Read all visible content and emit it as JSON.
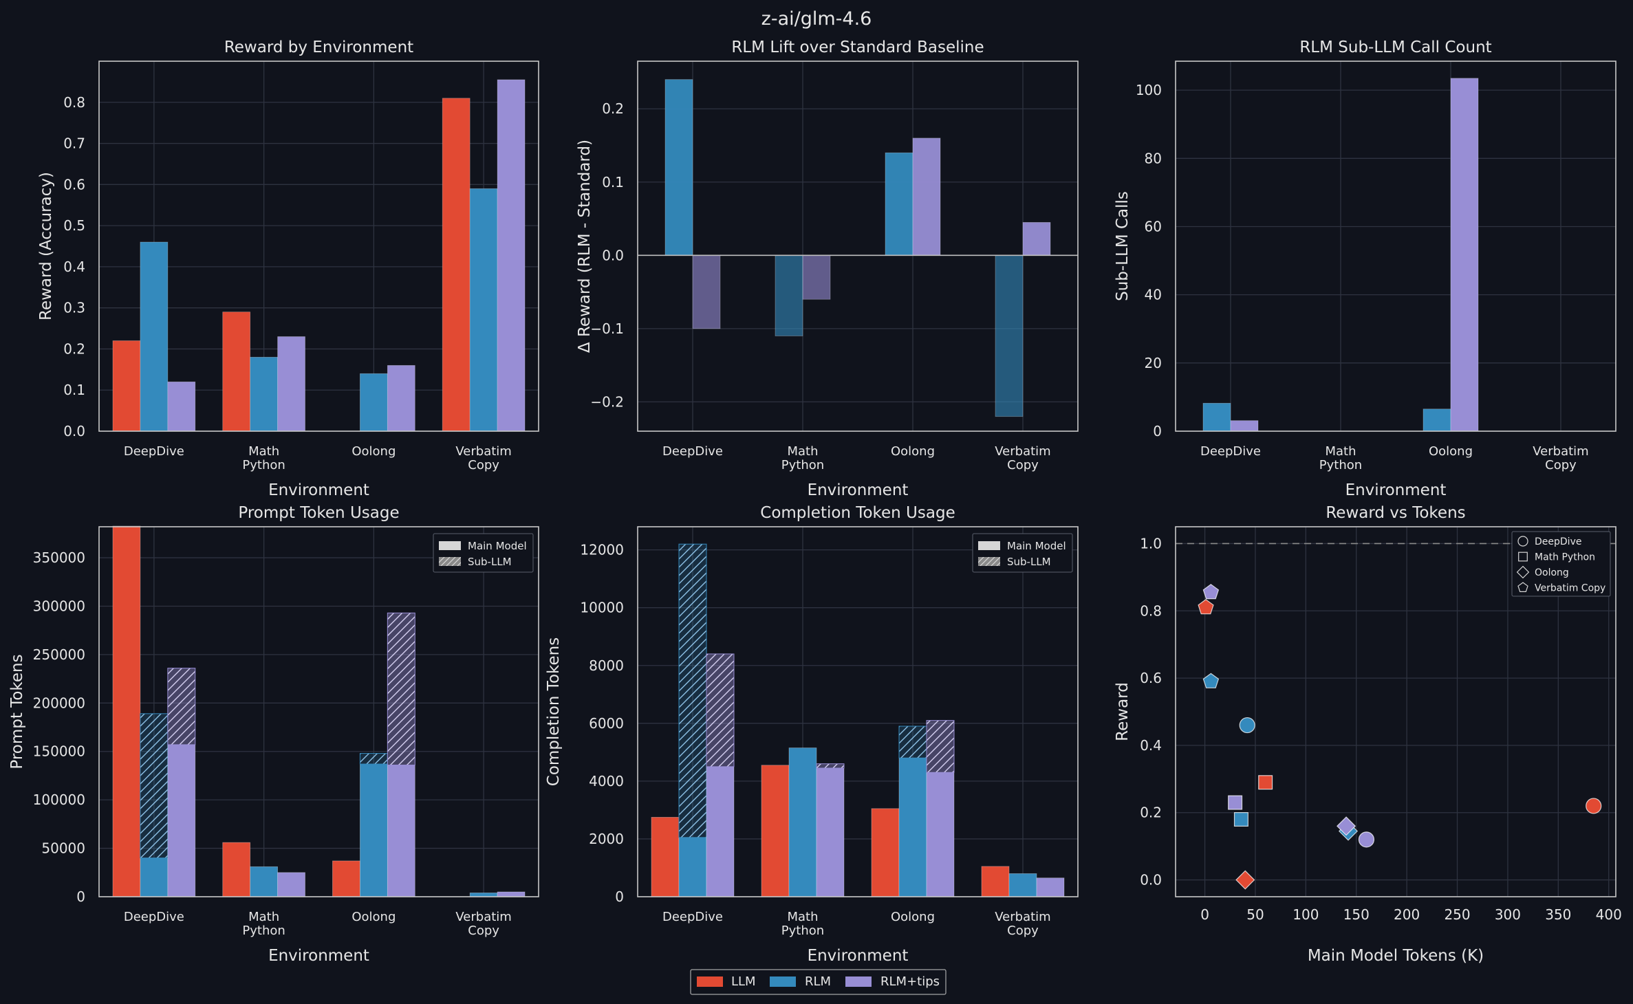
{
  "suptitle": "z-ai/glm-4.6",
  "colors": {
    "background": "#10131c",
    "grid": "#2e3340",
    "spine": "#c8c8c8",
    "text": "#e6e6e6",
    "llm": "#e24a33",
    "rlm": "#348abd",
    "rlm_tips": "#988ed5",
    "main_model_swatch": "#d6d6d6",
    "dashed_line": "#8a8a8a"
  },
  "legend": {
    "items": [
      "LLM",
      "RLM",
      "RLM+tips"
    ]
  },
  "chart_data": [
    {
      "id": "reward",
      "type": "bar",
      "title": "Reward by Environment",
      "xlabel": "Environment",
      "ylabel": "Reward (Accuracy)",
      "categories": [
        "DeepDive",
        "Math\nPython",
        "Oolong",
        "Verbatim\nCopy"
      ],
      "ylim": [
        0,
        0.9
      ],
      "yticks": [
        0,
        0.1,
        0.2,
        0.3,
        0.4,
        0.5,
        0.6,
        0.7,
        0.8
      ],
      "ytick_labels": [
        "0.0",
        "0.1",
        "0.2",
        "0.3",
        "0.4",
        "0.5",
        "0.6",
        "0.7",
        "0.8"
      ],
      "series": [
        {
          "name": "LLM",
          "values": [
            0.22,
            0.29,
            0.0,
            0.81
          ]
        },
        {
          "name": "RLM",
          "values": [
            0.46,
            0.18,
            0.14,
            0.59
          ]
        },
        {
          "name": "RLM+tips",
          "values": [
            0.12,
            0.23,
            0.16,
            0.855
          ]
        }
      ]
    },
    {
      "id": "lift",
      "type": "bar",
      "title": "RLM Lift over Standard Baseline",
      "xlabel": "Environment",
      "ylabel": "Δ Reward (RLM - Standard)",
      "categories": [
        "DeepDive",
        "Math\nPython",
        "Oolong",
        "Verbatim\nCopy"
      ],
      "ylim": [
        -0.24,
        0.265
      ],
      "yticks": [
        -0.2,
        -0.1,
        0,
        0.1,
        0.2
      ],
      "ytick_labels": [
        "−0.2",
        "−0.1",
        "0.0",
        "0.1",
        "0.2"
      ],
      "zero_line": true,
      "series": [
        {
          "name": "RLM",
          "values": [
            0.24,
            -0.11,
            0.14,
            -0.22
          ]
        },
        {
          "name": "RLM+tips",
          "values": [
            -0.1,
            -0.06,
            0.16,
            0.045
          ]
        }
      ]
    },
    {
      "id": "subcalls",
      "type": "bar",
      "title": "RLM Sub-LLM Call Count",
      "xlabel": "Environment",
      "ylabel": "Sub-LLM Calls",
      "categories": [
        "DeepDive",
        "Math\nPython",
        "Oolong",
        "Verbatim\nCopy"
      ],
      "ylim": [
        0,
        108.5
      ],
      "yticks": [
        0,
        20,
        40,
        60,
        80,
        100
      ],
      "ytick_labels": [
        "0",
        "20",
        "40",
        "60",
        "80",
        "100"
      ],
      "series": [
        {
          "name": "RLM",
          "values": [
            8.2,
            0,
            6.5,
            0
          ]
        },
        {
          "name": "RLM+tips",
          "values": [
            3.1,
            0,
            103.5,
            0
          ]
        }
      ]
    },
    {
      "id": "prompt",
      "type": "bar",
      "stacked": true,
      "title": "Prompt Token Usage",
      "xlabel": "Environment",
      "ylabel": "Prompt Tokens",
      "categories": [
        "DeepDive",
        "Math\nPython",
        "Oolong",
        "Verbatim\nCopy"
      ],
      "ylim": [
        0,
        382000
      ],
      "yticks": [
        0,
        50000,
        100000,
        150000,
        200000,
        250000,
        300000,
        350000
      ],
      "ytick_labels": [
        "0",
        "50000",
        "100000",
        "150000",
        "200000",
        "250000",
        "300000",
        "350000"
      ],
      "legend_items": [
        "Main Model",
        "Sub-LLM"
      ],
      "series": [
        {
          "name": "LLM",
          "main": [
            385000,
            56000,
            37000,
            0
          ],
          "sub": [
            0,
            0,
            0,
            0
          ]
        },
        {
          "name": "RLM",
          "main": [
            40000,
            31000,
            137000,
            4000
          ],
          "sub": [
            149000,
            0,
            11000,
            0
          ]
        },
        {
          "name": "RLM+tips",
          "main": [
            157000,
            25000,
            136000,
            5000
          ],
          "sub": [
            79000,
            0,
            157000,
            0
          ]
        }
      ]
    },
    {
      "id": "completion",
      "type": "bar",
      "stacked": true,
      "title": "Completion Token Usage",
      "xlabel": "Environment",
      "ylabel": "Completion Tokens",
      "categories": [
        "DeepDive",
        "Math\nPython",
        "Oolong",
        "Verbatim\nCopy"
      ],
      "ylim": [
        0,
        12800
      ],
      "yticks": [
        0,
        2000,
        4000,
        6000,
        8000,
        10000,
        12000
      ],
      "ytick_labels": [
        "0",
        "2000",
        "4000",
        "6000",
        "8000",
        "10000",
        "12000"
      ],
      "legend_items": [
        "Main Model",
        "Sub-LLM"
      ],
      "series": [
        {
          "name": "LLM",
          "main": [
            2750,
            4550,
            3050,
            1050
          ],
          "sub": [
            0,
            0,
            0,
            0
          ]
        },
        {
          "name": "RLM",
          "main": [
            2050,
            5150,
            4800,
            800
          ],
          "sub": [
            10150,
            0,
            1100,
            0
          ]
        },
        {
          "name": "RLM+tips",
          "main": [
            4500,
            4450,
            4300,
            650
          ],
          "sub": [
            3900,
            150,
            1800,
            0
          ]
        }
      ]
    },
    {
      "id": "scatter",
      "type": "scatter",
      "title": "Reward vs Tokens",
      "xlabel": "Main Model Tokens (K)",
      "ylabel": "Reward",
      "xlim": [
        -29,
        407
      ],
      "ylim": [
        -0.05,
        1.05
      ],
      "xticks": [
        0,
        50,
        100,
        150,
        200,
        250,
        300,
        350,
        400
      ],
      "xtick_labels": [
        "0",
        "50",
        "100",
        "150",
        "200",
        "250",
        "300",
        "350",
        "400"
      ],
      "yticks": [
        0,
        0.2,
        0.4,
        0.6,
        0.8,
        1.0
      ],
      "ytick_labels": [
        "0.0",
        "0.2",
        "0.4",
        "0.6",
        "0.8",
        "1.0"
      ],
      "hline": 1.0,
      "legend_items": [
        "DeepDive",
        "Math Python",
        "Oolong",
        "Verbatim Copy"
      ],
      "points": [
        {
          "series": "LLM",
          "env": "DeepDive",
          "x": 385,
          "y": 0.22
        },
        {
          "series": "RLM",
          "env": "DeepDive",
          "x": 42,
          "y": 0.46
        },
        {
          "series": "RLM+tips",
          "env": "DeepDive",
          "x": 160,
          "y": 0.12
        },
        {
          "series": "LLM",
          "env": "Math Python",
          "x": 60,
          "y": 0.29
        },
        {
          "series": "RLM",
          "env": "Math Python",
          "x": 36,
          "y": 0.18
        },
        {
          "series": "RLM+tips",
          "env": "Math Python",
          "x": 30,
          "y": 0.23
        },
        {
          "series": "LLM",
          "env": "Oolong",
          "x": 40,
          "y": 0.0
        },
        {
          "series": "RLM",
          "env": "Oolong",
          "x": 142,
          "y": 0.145
        },
        {
          "series": "RLM+tips",
          "env": "Oolong",
          "x": 140,
          "y": 0.16
        },
        {
          "series": "LLM",
          "env": "Verbatim Copy",
          "x": 1,
          "y": 0.81
        },
        {
          "series": "RLM",
          "env": "Verbatim Copy",
          "x": 6,
          "y": 0.59
        },
        {
          "series": "RLM+tips",
          "env": "Verbatim Copy",
          "x": 6,
          "y": 0.855
        }
      ]
    }
  ]
}
